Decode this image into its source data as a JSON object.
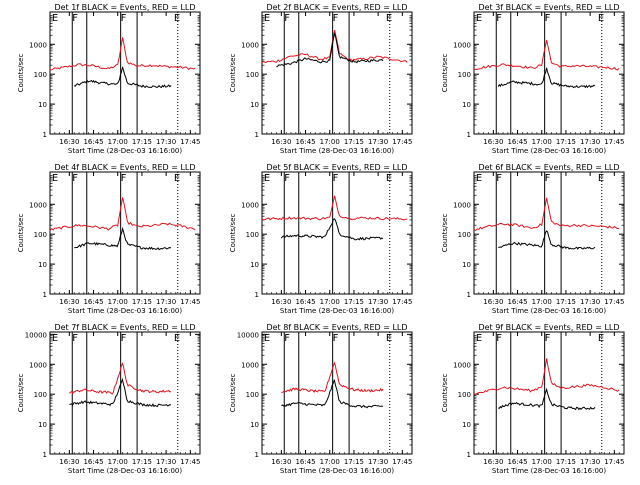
{
  "colors": {
    "events": "#000000",
    "lld": "#e0141e",
    "frame": "#000000",
    "dotted": "#000000"
  },
  "chart_data": [
    {
      "type": "line",
      "title": "Det 1f BLACK = Events, RED = LLD",
      "xlabel": "Start Time (28-Dec-03 16:16:00)",
      "ylabel": "Counts/sec",
      "yscale": "log",
      "ylim": [
        1,
        12000
      ],
      "xlim": [
        16.3,
        17.85
      ],
      "yticks": [
        "1",
        "10",
        "100",
        "1000"
      ],
      "xtick_labels": [
        "16:30",
        "16:45",
        "17:00",
        "17:15",
        "17:30",
        "17:45"
      ],
      "xticks": [
        16.5,
        16.75,
        17.0,
        17.25,
        17.5,
        17.75
      ],
      "region_lines": [
        16.53,
        16.68,
        17.03,
        17.2
      ],
      "region_dotted": [
        17.62
      ],
      "region_letters": [
        {
          "t": "E",
          "x": 16.32
        },
        {
          "t": "F",
          "x": 16.53
        },
        {
          "t": "F",
          "x": 17.03
        },
        {
          "t": "E",
          "x": 17.58
        }
      ],
      "series": [
        {
          "name": "LLD",
          "color": "lld",
          "x": [
            16.3,
            16.45,
            16.6,
            16.75,
            16.9,
            17.0,
            17.05,
            17.1,
            17.2,
            17.35,
            17.5,
            17.65,
            17.8
          ],
          "values": [
            140,
            170,
            210,
            190,
            150,
            200,
            1600,
            250,
            190,
            200,
            180,
            170,
            150
          ]
        },
        {
          "name": "Events",
          "color": "events",
          "x": [
            16.55,
            16.7,
            16.85,
            17.0,
            17.05,
            17.1,
            17.25,
            17.4,
            17.55
          ],
          "values": [
            40,
            60,
            50,
            45,
            170,
            50,
            40,
            38,
            40
          ]
        }
      ]
    },
    {
      "type": "line",
      "title": "Det 2f BLACK = Events, RED = LLD",
      "xlabel": "Start Time (28-Dec-03 16:16:00)",
      "ylabel": "Counts/sec",
      "yscale": "log",
      "ylim": [
        1,
        12000
      ],
      "xlim": [
        16.3,
        17.85
      ],
      "yticks": [
        "1",
        "10",
        "100",
        "1000"
      ],
      "xtick_labels": [
        "16:30",
        "16:45",
        "17:00",
        "17:15",
        "17:30",
        "17:45"
      ],
      "xticks": [
        16.5,
        16.75,
        17.0,
        17.25,
        17.5,
        17.75
      ],
      "region_lines": [
        16.53,
        16.68,
        17.03,
        17.2
      ],
      "region_dotted": [
        17.62
      ],
      "region_letters": [
        {
          "t": "E",
          "x": 16.32
        },
        {
          "t": "F",
          "x": 16.53
        },
        {
          "t": "F",
          "x": 17.03
        },
        {
          "t": "E",
          "x": 17.58
        }
      ],
      "series": [
        {
          "name": "LLD",
          "color": "lld",
          "x": [
            16.3,
            16.45,
            16.6,
            16.75,
            16.9,
            17.0,
            17.05,
            17.1,
            17.2,
            17.35,
            17.5,
            17.65,
            17.8
          ],
          "values": [
            250,
            270,
            400,
            460,
            320,
            350,
            3000,
            500,
            300,
            320,
            380,
            320,
            260
          ]
        },
        {
          "name": "Events",
          "color": "events",
          "x": [
            16.45,
            16.6,
            16.75,
            16.9,
            17.0,
            17.05,
            17.1,
            17.25,
            17.4,
            17.55
          ],
          "values": [
            190,
            230,
            330,
            260,
            280,
            2400,
            380,
            260,
            280,
            300
          ]
        }
      ]
    },
    {
      "type": "line",
      "title": "Det 3f BLACK = Events, RED = LLD",
      "xlabel": "Start Time (28-Dec-03 16:16:00)",
      "ylabel": "Counts/sec",
      "yscale": "log",
      "ylim": [
        1,
        12000
      ],
      "xlim": [
        16.3,
        17.85
      ],
      "yticks": [
        "1",
        "10",
        "100",
        "1000"
      ],
      "xtick_labels": [
        "16:30",
        "16:45",
        "17:00",
        "17:15",
        "17:30",
        "17:45"
      ],
      "xticks": [
        16.5,
        16.75,
        17.0,
        17.25,
        17.5,
        17.75
      ],
      "region_lines": [
        16.53,
        16.68,
        17.03,
        17.2
      ],
      "region_dotted": [
        17.62
      ],
      "region_letters": [
        {
          "t": "E",
          "x": 16.32
        },
        {
          "t": "F",
          "x": 16.53
        },
        {
          "t": "F",
          "x": 17.03
        },
        {
          "t": "E",
          "x": 17.58
        }
      ],
      "series": [
        {
          "name": "LLD",
          "color": "lld",
          "x": [
            16.3,
            16.45,
            16.6,
            16.75,
            16.9,
            17.0,
            17.05,
            17.1,
            17.2,
            17.35,
            17.5,
            17.65,
            17.8
          ],
          "values": [
            150,
            180,
            210,
            190,
            160,
            200,
            1500,
            240,
            180,
            190,
            180,
            170,
            150
          ]
        },
        {
          "name": "Events",
          "color": "events",
          "x": [
            16.55,
            16.7,
            16.85,
            17.0,
            17.05,
            17.1,
            17.25,
            17.4,
            17.55
          ],
          "values": [
            40,
            55,
            50,
            45,
            160,
            50,
            40,
            38,
            40
          ]
        }
      ]
    },
    {
      "type": "line",
      "title": "Det 4f BLACK = Events, RED = LLD",
      "xlabel": "Start Time (28-Dec-03 16:16:00)",
      "ylabel": "Counts/sec",
      "yscale": "log",
      "ylim": [
        1,
        12000
      ],
      "xlim": [
        16.3,
        17.85
      ],
      "yticks": [
        "1",
        "10",
        "100",
        "1000"
      ],
      "xtick_labels": [
        "16:30",
        "16:45",
        "17:00",
        "17:15",
        "17:30",
        "17:45"
      ],
      "xticks": [
        16.5,
        16.75,
        17.0,
        17.25,
        17.5,
        17.75
      ],
      "region_lines": [
        16.53,
        16.68,
        17.03,
        17.2
      ],
      "region_dotted": [
        17.62
      ],
      "region_letters": [
        {
          "t": "E",
          "x": 16.32
        },
        {
          "t": "F",
          "x": 16.53
        },
        {
          "t": "F",
          "x": 17.03
        },
        {
          "t": "E",
          "x": 17.58
        }
      ],
      "series": [
        {
          "name": "LLD",
          "color": "lld",
          "x": [
            16.3,
            16.45,
            16.6,
            16.75,
            16.9,
            17.0,
            17.05,
            17.1,
            17.2,
            17.35,
            17.5,
            17.65,
            17.8
          ],
          "values": [
            140,
            170,
            200,
            180,
            150,
            200,
            1700,
            250,
            180,
            190,
            220,
            190,
            150
          ]
        },
        {
          "name": "Events",
          "color": "events",
          "x": [
            16.55,
            16.7,
            16.85,
            17.0,
            17.05,
            17.1,
            17.25,
            17.4,
            17.55
          ],
          "values": [
            35,
            50,
            45,
            40,
            150,
            45,
            35,
            33,
            35
          ]
        }
      ]
    },
    {
      "type": "line",
      "title": "Det 5f BLACK = Events, RED = LLD",
      "xlabel": "Start Time (28-Dec-03 16:16:00)",
      "ylabel": "Counts/sec",
      "yscale": "log",
      "ylim": [
        1,
        12000
      ],
      "xlim": [
        16.3,
        17.85
      ],
      "yticks": [
        "1",
        "10",
        "100",
        "1000"
      ],
      "xtick_labels": [
        "16:30",
        "16:45",
        "17:00",
        "17:15",
        "17:30",
        "17:45"
      ],
      "xticks": [
        16.5,
        16.75,
        17.0,
        17.25,
        17.5,
        17.75
      ],
      "region_lines": [
        16.53,
        16.68,
        17.03,
        17.2
      ],
      "region_dotted": [
        17.62
      ],
      "region_letters": [
        {
          "t": "E",
          "x": 16.32
        },
        {
          "t": "F",
          "x": 16.53
        },
        {
          "t": "F",
          "x": 17.03
        },
        {
          "t": "E",
          "x": 17.58
        }
      ],
      "series": [
        {
          "name": "LLD",
          "color": "lld",
          "x": [
            16.3,
            16.45,
            16.6,
            16.75,
            16.9,
            17.0,
            17.05,
            17.1,
            17.2,
            17.35,
            17.5,
            17.65,
            17.8
          ],
          "values": [
            320,
            330,
            350,
            340,
            330,
            360,
            1800,
            420,
            340,
            350,
            340,
            330,
            320
          ]
        },
        {
          "name": "Events",
          "color": "events",
          "x": [
            16.5,
            16.65,
            16.8,
            16.95,
            17.05,
            17.1,
            17.25,
            17.4,
            17.55
          ],
          "values": [
            80,
            90,
            85,
            80,
            360,
            100,
            70,
            72,
            75
          ]
        }
      ]
    },
    {
      "type": "line",
      "title": "Det 6f BLACK = Events, RED = LLD",
      "xlabel": "Start Time (28-Dec-03 16:16:00)",
      "ylabel": "Counts/sec",
      "yscale": "log",
      "ylim": [
        1,
        12000
      ],
      "xlim": [
        16.3,
        17.85
      ],
      "yticks": [
        "1",
        "10",
        "100",
        "1000"
      ],
      "xtick_labels": [
        "16:30",
        "16:45",
        "17:00",
        "17:15",
        "17:30",
        "17:45"
      ],
      "xticks": [
        16.5,
        16.75,
        17.0,
        17.25,
        17.5,
        17.75
      ],
      "region_lines": [
        16.53,
        16.68,
        17.03,
        17.2
      ],
      "region_dotted": [
        17.62
      ],
      "region_letters": [
        {
          "t": "E",
          "x": 16.32
        },
        {
          "t": "F",
          "x": 16.53
        },
        {
          "t": "F",
          "x": 17.03
        },
        {
          "t": "E",
          "x": 17.58
        }
      ],
      "series": [
        {
          "name": "LLD",
          "color": "lld",
          "x": [
            16.3,
            16.45,
            16.6,
            16.75,
            16.9,
            17.0,
            17.05,
            17.1,
            17.2,
            17.35,
            17.5,
            17.65,
            17.8
          ],
          "values": [
            140,
            180,
            220,
            200,
            160,
            210,
            1600,
            260,
            190,
            200,
            190,
            180,
            160
          ]
        },
        {
          "name": "Events",
          "color": "events",
          "x": [
            16.55,
            16.7,
            16.85,
            17.0,
            17.05,
            17.1,
            17.25,
            17.4,
            17.55
          ],
          "values": [
            35,
            50,
            45,
            40,
            140,
            45,
            35,
            33,
            35
          ]
        }
      ]
    },
    {
      "type": "line",
      "title": "Det 7f BLACK = Events, RED = LLD",
      "xlabel": "Start Time (28-Dec-03 16:16:00)",
      "ylabel": "Counts/sec",
      "yscale": "log",
      "ylim": [
        1,
        12000
      ],
      "xlim": [
        16.3,
        17.85
      ],
      "yticks": [
        "1",
        "10",
        "100",
        "1000",
        "10000"
      ],
      "xtick_labels": [
        "16:30",
        "16:45",
        "17:00",
        "17:15",
        "17:30",
        "17:45"
      ],
      "xticks": [
        16.5,
        16.75,
        17.0,
        17.25,
        17.5,
        17.75
      ],
      "region_lines": [
        16.53,
        16.68,
        17.03,
        17.2
      ],
      "region_dotted": [
        17.62
      ],
      "region_letters": [
        {
          "t": "E",
          "x": 16.32
        },
        {
          "t": "F",
          "x": 16.53
        },
        {
          "t": "F",
          "x": 17.03
        },
        {
          "t": "E",
          "x": 17.58
        }
      ],
      "series": [
        {
          "name": "LLD",
          "color": "lld",
          "x": [
            16.5,
            16.65,
            16.8,
            16.95,
            17.05,
            17.1,
            17.25,
            17.4,
            17.55
          ],
          "values": [
            110,
            140,
            120,
            110,
            1100,
            200,
            130,
            120,
            130
          ]
        },
        {
          "name": "Events",
          "color": "events",
          "x": [
            16.5,
            16.65,
            16.8,
            16.95,
            17.05,
            17.1,
            17.25,
            17.4,
            17.55
          ],
          "values": [
            45,
            55,
            50,
            45,
            300,
            60,
            45,
            42,
            45
          ]
        }
      ]
    },
    {
      "type": "line",
      "title": "Det 8f BLACK = Events, RED = LLD",
      "xlabel": "Start Time (28-Dec-03 16:16:00)",
      "ylabel": "Counts/sec",
      "yscale": "log",
      "ylim": [
        1,
        12000
      ],
      "xlim": [
        16.3,
        17.85
      ],
      "yticks": [
        "1",
        "10",
        "100",
        "1000",
        "10000"
      ],
      "xtick_labels": [
        "16:30",
        "16:45",
        "17:00",
        "17:15",
        "17:30",
        "17:45"
      ],
      "xticks": [
        16.5,
        16.75,
        17.0,
        17.25,
        17.5,
        17.75
      ],
      "region_lines": [
        16.53,
        16.68,
        17.03,
        17.2
      ],
      "region_dotted": [
        17.62
      ],
      "region_letters": [
        {
          "t": "E",
          "x": 16.32
        },
        {
          "t": "F",
          "x": 16.53
        },
        {
          "t": "F",
          "x": 17.03
        },
        {
          "t": "E",
          "x": 17.58
        }
      ],
      "series": [
        {
          "name": "LLD",
          "color": "lld",
          "x": [
            16.5,
            16.65,
            16.8,
            16.95,
            17.05,
            17.1,
            17.25,
            17.4,
            17.55
          ],
          "values": [
            120,
            150,
            130,
            120,
            1200,
            210,
            140,
            130,
            140
          ]
        },
        {
          "name": "Events",
          "color": "events",
          "x": [
            16.5,
            16.65,
            16.8,
            16.95,
            17.05,
            17.1,
            17.25,
            17.4,
            17.55
          ],
          "values": [
            40,
            50,
            45,
            42,
            300,
            55,
            40,
            38,
            40
          ]
        }
      ]
    },
    {
      "type": "line",
      "title": "Det 9f BLACK = Events, RED = LLD",
      "xlabel": "Start Time (28-Dec-03 16:16:00)",
      "ylabel": "Counts/sec",
      "yscale": "log",
      "ylim": [
        1,
        12000
      ],
      "xlim": [
        16.3,
        17.85
      ],
      "yticks": [
        "1",
        "10",
        "100",
        "1000"
      ],
      "xtick_labels": [
        "16:30",
        "16:45",
        "17:00",
        "17:15",
        "17:30",
        "17:45"
      ],
      "xticks": [
        16.5,
        16.75,
        17.0,
        17.25,
        17.5,
        17.75
      ],
      "region_lines": [
        16.53,
        16.68,
        17.03,
        17.2
      ],
      "region_dotted": [
        17.62
      ],
      "region_letters": [
        {
          "t": "E",
          "x": 16.32
        },
        {
          "t": "F",
          "x": 16.53
        },
        {
          "t": "F",
          "x": 17.03
        },
        {
          "t": "E",
          "x": 17.58
        }
      ],
      "series": [
        {
          "name": "LLD",
          "color": "lld",
          "x": [
            16.3,
            16.45,
            16.6,
            16.75,
            16.9,
            17.0,
            17.05,
            17.1,
            17.2,
            17.35,
            17.5,
            17.65,
            17.8
          ],
          "values": [
            100,
            130,
            170,
            150,
            130,
            180,
            1500,
            230,
            160,
            180,
            200,
            170,
            130
          ]
        },
        {
          "name": "Events",
          "color": "events",
          "x": [
            16.55,
            16.7,
            16.85,
            17.0,
            17.05,
            17.1,
            17.25,
            17.4,
            17.55
          ],
          "values": [
            35,
            50,
            45,
            40,
            140,
            45,
            35,
            33,
            35
          ]
        }
      ]
    }
  ]
}
